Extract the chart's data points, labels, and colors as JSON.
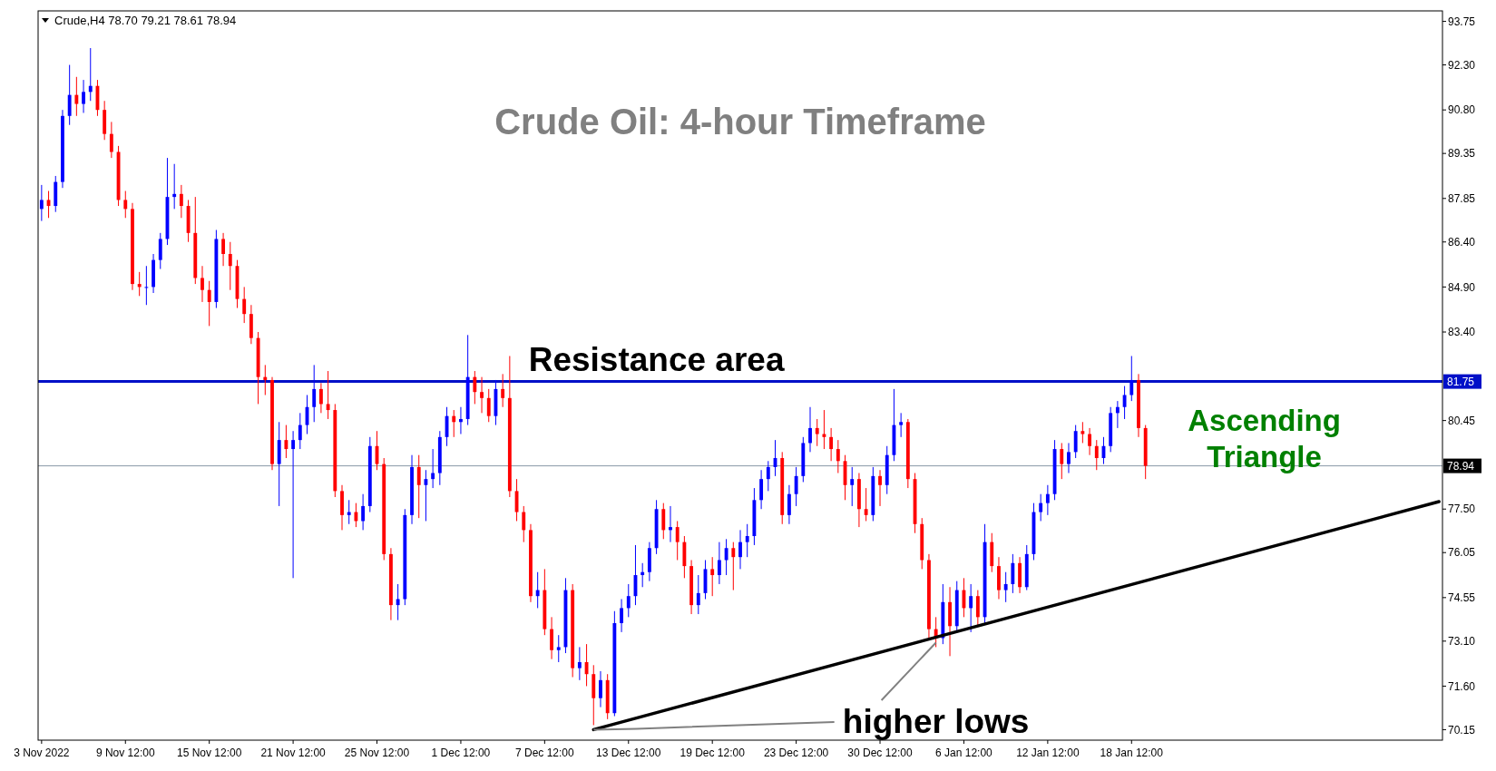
{
  "chart_data": {
    "type": "candlestick",
    "title": "Crude Oil: 4-hour Timeframe",
    "annotations": [
      "Crude,H4 78.70 79.21 78.61 78.94",
      "Resistance area",
      "Ascending Triangle",
      {
        "text": "higher lows",
        "y": 73.05
      }
    ],
    "categories": [
      "3 Nov 2022",
      null,
      null,
      null,
      null,
      null,
      null,
      null,
      null,
      null,
      null,
      null,
      "9 Nov 12:00",
      null,
      null,
      null,
      null,
      null,
      null,
      null,
      null,
      null,
      null,
      null,
      "15 Nov 12:00",
      null,
      null,
      null,
      null,
      null,
      null,
      null,
      null,
      null,
      null,
      null,
      "21 Nov 12:00",
      null,
      null,
      null,
      null,
      null,
      null,
      null,
      null,
      null,
      null,
      null,
      "25 Nov 12:00",
      null,
      null,
      null,
      null,
      null,
      null,
      null,
      null,
      null,
      null,
      null,
      "1 Dec 12:00",
      null,
      null,
      null,
      null,
      null,
      null,
      null,
      null,
      null,
      null,
      null,
      "7 Dec 12:00",
      null,
      null,
      null,
      null,
      null,
      null,
      null,
      null,
      null,
      null,
      null,
      "13 Dec 12:00",
      null,
      null,
      null,
      null,
      null,
      null,
      null,
      null,
      null,
      null,
      null,
      "19 Dec 12:00",
      null,
      null,
      null,
      null,
      null,
      null,
      null,
      null,
      null,
      null,
      null,
      "23 Dec 12:00",
      null,
      null,
      null,
      null,
      null,
      null,
      null,
      null,
      null,
      null,
      null,
      "30 Dec 12:00",
      null,
      null,
      null,
      null,
      null,
      null,
      null,
      null,
      null,
      null,
      null,
      "6 Jan 12:00",
      null,
      null,
      null,
      null,
      null,
      null,
      null,
      null,
      null,
      null,
      null,
      "12 Jan 12:00",
      null,
      null,
      null,
      null,
      null,
      null,
      null,
      null,
      null,
      null,
      null,
      "18 Jan 12:00",
      null,
      null,
      null,
      null,
      null,
      null,
      null,
      null,
      null,
      null,
      null,
      null,
      null,
      null,
      null,
      null,
      null,
      null,
      null,
      null,
      null,
      null,
      null,
      null,
      null,
      null,
      null,
      null,
      null,
      null,
      null,
      null,
      null,
      null,
      null,
      null,
      null,
      null,
      null,
      null,
      null,
      null,
      null,
      null
    ],
    "ohlc": [
      [
        87.5,
        88.3,
        87.1,
        87.8
      ],
      [
        87.8,
        88.1,
        87.2,
        87.6
      ],
      [
        87.6,
        88.6,
        87.4,
        88.4
      ],
      [
        88.4,
        90.8,
        88.2,
        90.6
      ],
      [
        90.6,
        92.3,
        90.3,
        91.3
      ],
      [
        91.3,
        91.9,
        90.6,
        91.0
      ],
      [
        91.0,
        91.8,
        90.7,
        91.4
      ],
      [
        91.4,
        92.86,
        91.1,
        91.6
      ],
      [
        91.6,
        91.8,
        90.6,
        90.8
      ],
      [
        90.8,
        91.1,
        89.8,
        90.0
      ],
      [
        90.0,
        90.4,
        89.2,
        89.4
      ],
      [
        89.4,
        89.6,
        87.6,
        87.8
      ],
      [
        87.8,
        88.1,
        87.2,
        87.5
      ],
      [
        87.5,
        87.7,
        84.8,
        85.0
      ],
      [
        85.0,
        85.4,
        84.6,
        84.9
      ],
      [
        84.9,
        85.6,
        84.3,
        84.9
      ],
      [
        84.9,
        86.0,
        84.7,
        85.8
      ],
      [
        85.8,
        86.7,
        85.5,
        86.5
      ],
      [
        86.5,
        89.2,
        86.3,
        87.9
      ],
      [
        87.9,
        89.0,
        87.5,
        88.0
      ],
      [
        88.0,
        88.3,
        87.2,
        87.6
      ],
      [
        87.6,
        87.8,
        86.4,
        86.7
      ],
      [
        86.7,
        87.9,
        85.0,
        85.2
      ],
      [
        85.2,
        85.6,
        84.4,
        84.8
      ],
      [
        84.8,
        85.1,
        83.6,
        84.4
      ],
      [
        84.4,
        86.8,
        84.2,
        86.5
      ],
      [
        86.5,
        86.7,
        85.6,
        86.0
      ],
      [
        86.0,
        86.4,
        84.8,
        85.6
      ],
      [
        85.6,
        85.8,
        84.2,
        84.5
      ],
      [
        84.5,
        84.9,
        83.7,
        84.0
      ],
      [
        84.0,
        84.3,
        83.0,
        83.2
      ],
      [
        83.2,
        83.4,
        81.0,
        81.9
      ],
      [
        81.9,
        82.3,
        81.3,
        81.8
      ],
      [
        81.8,
        81.9,
        78.8,
        79.0
      ],
      [
        79.0,
        80.4,
        77.6,
        79.8
      ],
      [
        79.8,
        80.3,
        79.2,
        79.5
      ],
      [
        79.5,
        80.1,
        75.2,
        79.8
      ],
      [
        79.8,
        80.7,
        79.5,
        80.3
      ],
      [
        80.3,
        81.3,
        80.0,
        80.9
      ],
      [
        80.9,
        82.3,
        80.4,
        81.5
      ],
      [
        81.5,
        81.7,
        80.7,
        81.0
      ],
      [
        81.0,
        82.1,
        80.5,
        80.8
      ],
      [
        80.8,
        81.0,
        77.9,
        78.1
      ],
      [
        78.1,
        78.3,
        76.8,
        77.3
      ],
      [
        77.3,
        77.8,
        77.0,
        77.4
      ],
      [
        77.4,
        77.7,
        76.9,
        77.1
      ],
      [
        77.1,
        78.0,
        76.8,
        77.6
      ],
      [
        77.6,
        79.9,
        77.4,
        79.6
      ],
      [
        79.6,
        80.1,
        78.8,
        79.0
      ],
      [
        79.0,
        79.2,
        75.8,
        76.0
      ],
      [
        76.0,
        76.2,
        73.8,
        74.3
      ],
      [
        74.3,
        75.0,
        73.8,
        74.5
      ],
      [
        74.5,
        77.5,
        74.3,
        77.3
      ],
      [
        77.3,
        79.3,
        77.0,
        78.9
      ],
      [
        78.9,
        79.3,
        77.2,
        78.3
      ],
      [
        78.3,
        78.8,
        77.1,
        78.5
      ],
      [
        78.5,
        79.5,
        78.2,
        78.7
      ],
      [
        78.7,
        80.1,
        78.3,
        79.9
      ],
      [
        79.9,
        80.9,
        79.6,
        80.6
      ],
      [
        80.6,
        80.8,
        79.9,
        80.4
      ],
      [
        80.4,
        80.9,
        80.0,
        80.5
      ],
      [
        80.5,
        83.3,
        80.3,
        81.9
      ],
      [
        81.9,
        82.1,
        81.0,
        81.4
      ],
      [
        81.4,
        81.9,
        80.7,
        81.2
      ],
      [
        81.2,
        81.5,
        80.4,
        80.6
      ],
      [
        80.6,
        81.8,
        80.3,
        81.5
      ],
      [
        81.5,
        82.0,
        80.9,
        81.2
      ],
      [
        81.2,
        82.6,
        77.9,
        78.1
      ],
      [
        78.1,
        78.5,
        77.1,
        77.4
      ],
      [
        77.4,
        77.6,
        76.4,
        76.8
      ],
      [
        76.8,
        77.0,
        74.4,
        74.6
      ],
      [
        74.6,
        75.4,
        74.2,
        74.8
      ],
      [
        74.8,
        75.5,
        73.3,
        73.5
      ],
      [
        73.5,
        73.9,
        72.5,
        72.8
      ],
      [
        72.8,
        73.3,
        72.4,
        72.9
      ],
      [
        72.9,
        75.2,
        72.7,
        74.8
      ],
      [
        74.8,
        75.0,
        71.9,
        72.2
      ],
      [
        72.2,
        72.9,
        71.8,
        72.4
      ],
      [
        72.4,
        73.0,
        71.6,
        72.0
      ],
      [
        72.0,
        72.3,
        70.3,
        71.2
      ],
      [
        71.2,
        72.1,
        70.9,
        71.8
      ],
      [
        71.8,
        72.0,
        70.5,
        70.7
      ],
      [
        70.7,
        74.1,
        70.6,
        73.7
      ],
      [
        73.7,
        74.5,
        73.4,
        74.2
      ],
      [
        74.2,
        75.0,
        73.9,
        74.6
      ],
      [
        74.6,
        76.3,
        74.3,
        75.3
      ],
      [
        75.3,
        75.7,
        74.9,
        75.4
      ],
      [
        75.4,
        76.4,
        75.1,
        76.2
      ],
      [
        76.2,
        77.8,
        76.0,
        77.5
      ],
      [
        77.5,
        77.7,
        76.5,
        76.8
      ],
      [
        76.8,
        77.6,
        76.4,
        76.9
      ],
      [
        76.9,
        77.1,
        75.8,
        76.4
      ],
      [
        76.4,
        76.6,
        75.2,
        75.6
      ],
      [
        75.6,
        75.8,
        74.0,
        74.3
      ],
      [
        74.3,
        75.3,
        74.0,
        74.7
      ],
      [
        74.7,
        75.8,
        74.5,
        75.5
      ],
      [
        75.5,
        75.9,
        74.6,
        75.3
      ],
      [
        75.3,
        76.4,
        75.0,
        75.8
      ],
      [
        75.8,
        76.5,
        75.3,
        76.2
      ],
      [
        76.2,
        76.4,
        74.8,
        75.9
      ],
      [
        75.9,
        76.8,
        75.5,
        76.4
      ],
      [
        76.4,
        77.0,
        75.9,
        76.6
      ],
      [
        76.6,
        78.2,
        76.3,
        77.8
      ],
      [
        77.8,
        78.8,
        77.5,
        78.5
      ],
      [
        78.5,
        79.1,
        78.1,
        78.9
      ],
      [
        78.9,
        79.8,
        78.6,
        79.2
      ],
      [
        79.2,
        79.4,
        77.0,
        77.3
      ],
      [
        77.3,
        78.3,
        77.0,
        78.0
      ],
      [
        78.0,
        78.9,
        77.6,
        78.6
      ],
      [
        78.6,
        79.9,
        78.4,
        79.7
      ],
      [
        79.7,
        80.9,
        79.4,
        80.2
      ],
      [
        80.2,
        80.5,
        79.6,
        80.0
      ],
      [
        80.0,
        80.8,
        79.5,
        79.9
      ],
      [
        79.9,
        80.2,
        79.1,
        79.5
      ],
      [
        79.5,
        79.8,
        78.7,
        79.1
      ],
      [
        79.1,
        79.3,
        77.8,
        78.3
      ],
      [
        78.3,
        78.9,
        77.6,
        78.5
      ],
      [
        78.5,
        78.7,
        76.9,
        77.5
      ],
      [
        77.5,
        78.2,
        77.1,
        77.3
      ],
      [
        77.3,
        78.9,
        77.1,
        78.6
      ],
      [
        78.6,
        78.8,
        77.6,
        78.3
      ],
      [
        78.3,
        79.6,
        78.0,
        79.3
      ],
      [
        79.3,
        81.5,
        79.1,
        80.3
      ],
      [
        80.3,
        80.7,
        79.9,
        80.4
      ],
      [
        80.4,
        80.5,
        78.2,
        78.5
      ],
      [
        78.5,
        78.7,
        76.7,
        77.0
      ],
      [
        77.0,
        77.2,
        75.5,
        75.8
      ],
      [
        75.8,
        76.0,
        73.2,
        73.5
      ],
      [
        73.5,
        73.9,
        72.9,
        73.2
      ],
      [
        73.2,
        75.0,
        73.0,
        74.4
      ],
      [
        74.4,
        74.9,
        72.6,
        73.6
      ],
      [
        73.6,
        75.1,
        73.4,
        74.8
      ],
      [
        74.8,
        75.2,
        73.9,
        74.2
      ],
      [
        74.2,
        75.0,
        73.4,
        74.6
      ],
      [
        74.6,
        74.8,
        73.6,
        73.9
      ],
      [
        73.9,
        77.0,
        73.7,
        76.4
      ],
      [
        76.4,
        76.7,
        75.4,
        75.6
      ],
      [
        75.6,
        75.9,
        74.5,
        74.8
      ],
      [
        74.8,
        75.4,
        74.4,
        75.0
      ],
      [
        75.0,
        76.0,
        74.7,
        75.7
      ],
      [
        75.7,
        75.9,
        74.7,
        74.9
      ],
      [
        74.9,
        76.3,
        74.8,
        76.0
      ],
      [
        76.0,
        77.7,
        75.8,
        77.4
      ],
      [
        77.4,
        78.0,
        77.1,
        77.7
      ],
      [
        77.7,
        78.3,
        77.3,
        78.0
      ],
      [
        78.0,
        79.8,
        77.8,
        79.5
      ],
      [
        79.5,
        79.7,
        78.5,
        79.0
      ],
      [
        79.0,
        79.7,
        78.7,
        79.4
      ],
      [
        79.4,
        80.3,
        79.2,
        80.1
      ],
      [
        80.1,
        80.4,
        79.7,
        80.0
      ],
      [
        80.0,
        80.2,
        79.3,
        79.6
      ],
      [
        79.6,
        79.8,
        78.8,
        79.2
      ],
      [
        79.2,
        79.9,
        79.0,
        79.6
      ],
      [
        79.6,
        80.9,
        79.4,
        80.7
      ],
      [
        80.7,
        81.1,
        80.2,
        80.9
      ],
      [
        80.9,
        81.6,
        80.5,
        81.3
      ],
      [
        81.3,
        82.6,
        81.1,
        81.8
      ],
      [
        81.8,
        82.0,
        79.9,
        80.2
      ],
      [
        80.2,
        80.3,
        78.5,
        78.94
      ],
      null,
      null,
      null,
      null,
      null,
      null,
      null,
      null,
      null,
      null,
      null,
      null,
      null,
      null,
      null,
      null,
      null,
      null,
      null,
      null,
      null,
      null,
      null,
      null,
      null,
      null,
      null,
      null,
      null,
      null,
      null,
      null,
      null,
      null,
      null,
      null,
      null,
      null,
      null,
      null,
      null,
      null
    ],
    "series": [
      {
        "type": "line",
        "color": "#000000",
        "values": [
          null,
          null,
          null,
          null,
          null,
          null,
          null,
          null,
          null,
          null,
          null,
          null,
          null,
          null,
          null,
          null,
          null,
          null,
          null,
          null,
          null,
          null,
          null,
          null,
          null,
          null,
          null,
          null,
          null,
          null,
          null,
          null,
          null,
          null,
          null,
          null,
          null,
          null,
          null,
          null,
          null,
          null,
          null,
          null,
          null,
          null,
          null,
          null,
          null,
          null,
          null,
          null,
          null,
          null,
          null,
          null,
          null,
          null,
          null,
          null,
          null,
          null,
          null,
          null,
          null,
          null,
          null,
          null,
          null,
          null,
          null,
          null,
          null,
          null,
          null,
          null,
          null,
          null,
          null,
          70.15,
          null,
          null,
          null,
          null,
          null,
          null,
          null,
          null,
          null,
          null,
          null,
          null,
          null,
          null,
          null,
          null,
          null,
          null,
          null,
          null,
          null,
          null,
          null,
          null,
          null,
          null,
          null,
          null,
          null,
          null,
          null,
          null,
          null,
          null,
          null,
          null,
          null,
          null,
          null,
          null,
          null,
          null,
          null,
          null,
          null,
          null,
          null,
          null,
          null,
          null,
          null,
          null,
          null,
          null,
          null,
          null,
          null,
          null,
          null,
          null,
          null,
          null,
          null,
          null,
          null,
          null,
          null,
          null,
          null,
          null,
          null,
          null,
          null,
          null,
          null,
          null,
          null,
          null,
          null,
          null,
          null,
          null,
          null,
          null,
          null,
          null,
          null,
          null,
          null,
          null,
          null,
          null,
          null,
          null,
          null,
          null,
          null,
          null,
          null,
          null,
          null,
          null,
          null,
          null,
          null,
          null,
          null,
          null,
          null,
          null,
          null,
          null,
          null,
          null,
          null,
          null,
          null,
          null,
          null,
          null,
          77.75
        ]
      }
    ],
    "ylim": [
      69.8,
      94.1
    ],
    "yticks": [
      {
        "value": 70.15,
        "label": "70.15"
      },
      {
        "value": 71.6,
        "label": "71.60"
      },
      {
        "value": 73.1,
        "label": "73.10"
      },
      {
        "value": 74.55,
        "label": "74.55"
      },
      {
        "value": 76.05,
        "label": "76.05"
      },
      {
        "value": 77.5,
        "label": "77.50"
      },
      {
        "value": 80.45,
        "label": "80.45"
      },
      {
        "value": 83.4,
        "label": "83.40"
      },
      {
        "value": 84.9,
        "label": "84.90"
      },
      {
        "value": 86.4,
        "label": "86.40"
      },
      {
        "value": 87.85,
        "label": "87.85"
      },
      {
        "value": 89.35,
        "label": "89.35"
      },
      {
        "value": 90.8,
        "label": "90.80"
      },
      {
        "value": 92.3,
        "label": "92.30"
      },
      {
        "value": 93.75,
        "label": "93.75"
      }
    ],
    "ref_lines": [
      {
        "axis": "y",
        "value": 81.75,
        "label": "81.75",
        "color": "#0010c8"
      },
      {
        "axis": "y",
        "value": 78.94,
        "label": "78.94",
        "color": "#8a9aa8"
      }
    ]
  }
}
